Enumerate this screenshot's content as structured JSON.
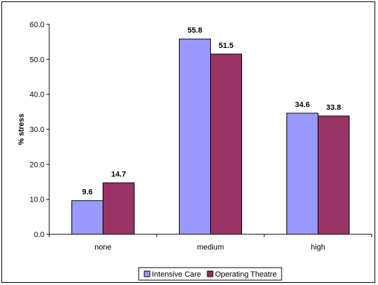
{
  "chart_data": {
    "type": "bar",
    "title": "",
    "xlabel": "",
    "ylabel": "% stress",
    "ylim": [
      0,
      60
    ],
    "yticks": [
      "0.0",
      "10.0",
      "20.0",
      "30.0",
      "40.0",
      "50.0",
      "60.0"
    ],
    "categories": [
      "none",
      "medium",
      "high"
    ],
    "series": [
      {
        "name": "Intensive Care",
        "values": [
          9.6,
          55.8,
          34.6
        ],
        "labels": [
          "9.6",
          "55.8",
          "34.6"
        ],
        "color": "#9999ff"
      },
      {
        "name": "Operating Theatre",
        "values": [
          14.7,
          51.5,
          33.8
        ],
        "labels": [
          "14.7",
          "51.5",
          "33.8"
        ],
        "color": "#993366"
      }
    ],
    "grid": false,
    "legend_position": "bottom"
  }
}
